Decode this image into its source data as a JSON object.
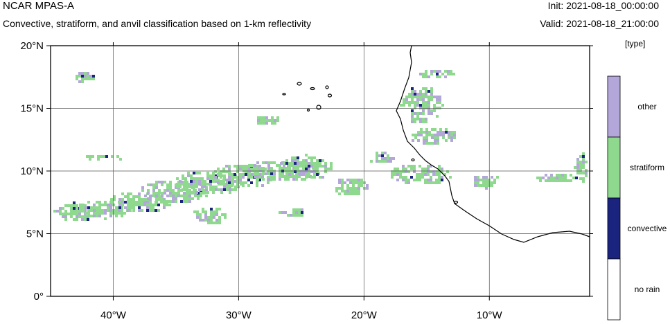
{
  "header": {
    "model": "NCAR MPAS-A",
    "description": "Convective, stratiform, and anvil classification based on 1-km reflectivity",
    "init": "Init: 2021-08-18_00:00:00",
    "valid": "Valid: 2021-08-18_21:00:00"
  },
  "legend": {
    "units": "[type]",
    "items": [
      {
        "label": "other",
        "color": "#b3a6d9"
      },
      {
        "label": "stratiform",
        "color": "#8fd98f"
      },
      {
        "label": "convective",
        "color": "#1a237e"
      },
      {
        "label": "no rain",
        "color": "#ffffff"
      }
    ]
  },
  "map": {
    "lon_range": [
      -45,
      -2
    ],
    "lat_range": [
      0,
      20
    ],
    "x_ticks": [
      "40°W",
      "30°W",
      "20°W",
      "10°W"
    ],
    "y_ticks": [
      "0°",
      "5°N",
      "10°N",
      "15°N",
      "20°N"
    ],
    "x_tick_values": [
      -40,
      -30,
      -20,
      -10
    ],
    "y_tick_values": [
      0,
      5,
      10,
      15,
      20
    ]
  }
}
